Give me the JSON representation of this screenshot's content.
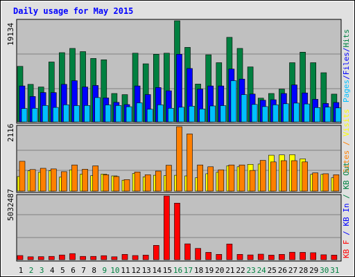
{
  "chart_data": {
    "type": "bar",
    "title": "Daily usage for May 2015",
    "categories": [
      "1",
      "2",
      "3",
      "4",
      "5",
      "6",
      "7",
      "8",
      "9",
      "10",
      "11",
      "12",
      "13",
      "14",
      "15",
      "16",
      "17",
      "18",
      "19",
      "20",
      "21",
      "22",
      "23",
      "24",
      "25",
      "26",
      "27",
      "28",
      "29",
      "30",
      "31"
    ],
    "weekend_days": [
      "2",
      "3",
      "9",
      "10",
      "16",
      "17",
      "23",
      "24",
      "30",
      "31"
    ],
    "panels": [
      {
        "id": "hits-files-pages",
        "ymax_label": "19134",
        "ymax": 19134,
        "axis_label_parts": [
          {
            "text": "Pages",
            "color": "#00c0ff"
          },
          {
            "text": "/",
            "color": "#0000ff"
          },
          {
            "text": "Files",
            "color": "#0000ff"
          },
          {
            "text": "/",
            "color": "#0000ff"
          },
          {
            "text": "Hits",
            "color": "#008040"
          }
        ],
        "series": [
          {
            "name": "Hits",
            "color": "#008040",
            "values": [
              10510,
              7100,
              6600,
              11330,
              13100,
              13900,
              13300,
              12000,
              11750,
              5370,
              5170,
              13000,
              11000,
              12800,
              13000,
              19134,
              14100,
              7150,
              12700,
              11200,
              16000,
              13900,
              10400,
              4500,
              5370,
              6200,
              11200,
              13200,
              11200,
              9300,
              5260
            ]
          },
          {
            "name": "Files",
            "color": "#0000ff",
            "values": [
              6800,
              4810,
              5560,
              5550,
              7100,
              7800,
              6600,
              6900,
              4530,
              3700,
              3280,
              6800,
              5180,
              6500,
              5880,
              12800,
              10100,
              6210,
              6800,
              6800,
              10000,
              8100,
              5270,
              4100,
              4200,
              5370,
              7000,
              5480,
              4270,
              3480,
              3670
            ]
          },
          {
            "name": "Pages",
            "color": "#00c0ff",
            "values": [
              2530,
              2570,
              3100,
              2740,
              3240,
              3080,
              3100,
              4600,
              3210,
              3100,
              2870,
              3600,
              2400,
              3240,
              2580,
              2780,
              2970,
              2450,
              3020,
              3080,
              7800,
              5170,
              3300,
              2900,
              3240,
              3430,
              3550,
              3400,
              2710,
              2790,
              2650
            ]
          }
        ]
      },
      {
        "id": "visits-sites",
        "ymax_label": "2116",
        "ymax": 2116,
        "axis_label_parts": [
          {
            "text": "Sites",
            "color": "#ff8000"
          },
          {
            "text": " / ",
            "color": "#ff8000"
          },
          {
            "text": "Visits",
            "color": "#ffff00"
          }
        ],
        "series": [
          {
            "name": "Visits",
            "color": "#ffff00",
            "values": [
              480,
              670,
              620,
              670,
              460,
              700,
              560,
              510,
              560,
              500,
              360,
              580,
              470,
              520,
              510,
              520,
              500,
              440,
              570,
              620,
              830,
              800,
              880,
              890,
              1180,
              1190,
              1200,
              1060,
              550,
              550,
              440
            ]
          },
          {
            "name": "Sites",
            "color": "#ff8000",
            "values": [
              980,
              710,
              750,
              730,
              640,
              860,
              720,
              830,
              540,
              480,
              380,
              630,
              540,
              660,
              850,
              2116,
              1880,
              860,
              800,
              700,
              860,
              860,
              680,
              1010,
              960,
              1000,
              1000,
              960,
              600,
              570,
              540
            ]
          }
        ]
      },
      {
        "id": "kb-in-out-f",
        "ymax_label": "5032487",
        "ymax": 5032487,
        "axis_label_parts": [
          {
            "text": "KB F",
            "color": "#ff0000"
          },
          {
            "text": " / ",
            "color": "#0000ff"
          },
          {
            "text": "KB In",
            "color": "#0000ff"
          },
          {
            "text": " / ",
            "color": "#008040"
          },
          {
            "text": "KB Out",
            "color": "#008040"
          }
        ],
        "series": [
          {
            "name": "KB F",
            "color": "#ff0000",
            "values": [
              330000,
              230000,
              240000,
              260000,
              370000,
              480000,
              260000,
              260000,
              320000,
              230000,
              420000,
              330000,
              360000,
              1130000,
              5032487,
              4470000,
              1250000,
              890000,
              580000,
              420000,
              1240000,
              420000,
              380000,
              440000,
              360000,
              420000,
              590000,
              580000,
              550000,
              390000,
              360000
            ]
          }
        ]
      }
    ]
  },
  "colors": {
    "panel_bg": "#c0c0c0",
    "frame_bg": "#e0e0e0",
    "grid": "#808080",
    "title": "#0000ff",
    "weekday_label": "#000000",
    "weekend_label": "#008040"
  }
}
